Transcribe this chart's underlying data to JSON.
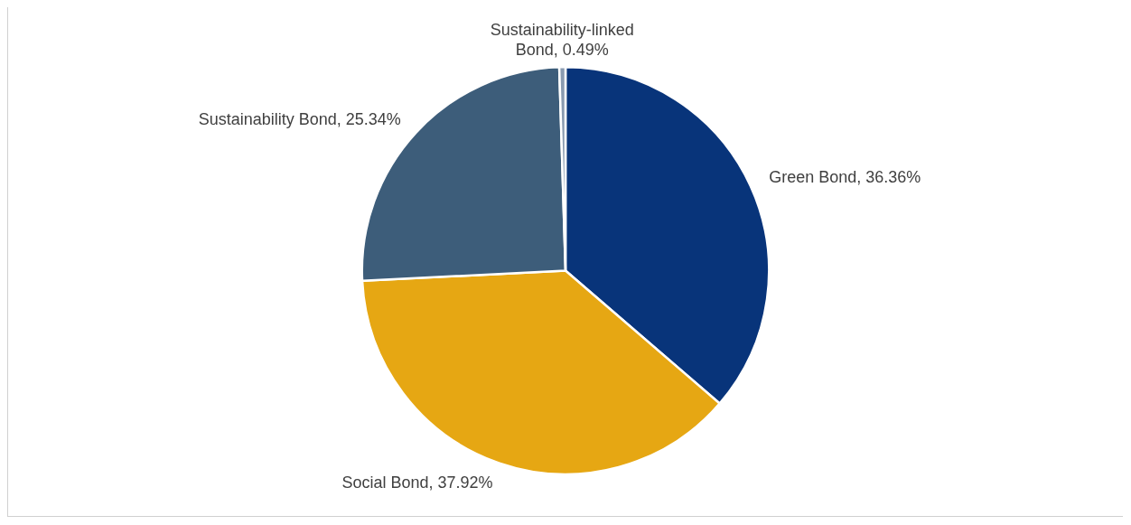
{
  "chart_data": {
    "type": "pie",
    "categories": [
      "Green Bond",
      "Social Bond",
      "Sustainability Bond",
      "Sustainability-linked Bond"
    ],
    "values": [
      36.36,
      37.92,
      25.34,
      0.49
    ],
    "value_labels": [
      "36.36%",
      "37.92%",
      "25.34%",
      "0.49%"
    ],
    "colors": [
      "#08347a",
      "#e6a713",
      "#3d5d7a",
      "#8a9bb0"
    ],
    "legend": false
  }
}
